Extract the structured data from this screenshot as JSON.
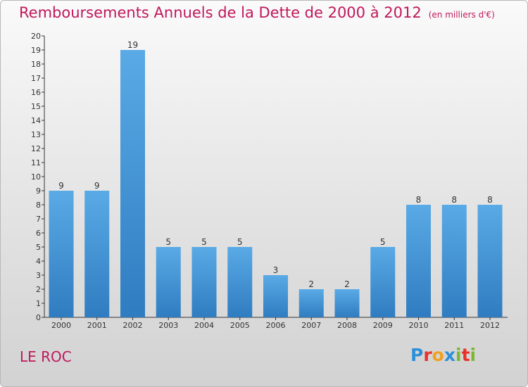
{
  "header": {
    "title": "Remboursements Annuels de la Dette de 2000 à 2012",
    "subtitle": "(en milliers d'€)"
  },
  "footer": {
    "commune": "LE ROC",
    "logo_text": "Proxiti",
    "logo_letters": [
      {
        "ch": "P",
        "color": "#2e8fd8"
      },
      {
        "ch": "r",
        "color": "#e8312a"
      },
      {
        "ch": "o",
        "color": "#f0a020"
      },
      {
        "ch": "x",
        "color": "#2e8fd8"
      },
      {
        "ch": "i",
        "color": "#7cb82f"
      },
      {
        "ch": "t",
        "color": "#e8312a"
      },
      {
        "ch": "i",
        "color": "#7cb82f"
      }
    ]
  },
  "colors": {
    "bar_top": "#5aaae6",
    "bar_bottom": "#2f7cc0",
    "title": "#c0185b",
    "axis": "#333333"
  },
  "chart_data": {
    "type": "bar",
    "title": "Remboursements Annuels de la Dette de 2000 à 2012",
    "subtitle": "(en milliers d'€)",
    "categories": [
      "2000",
      "2001",
      "2002",
      "2003",
      "2004",
      "2005",
      "2006",
      "2007",
      "2008",
      "2009",
      "2010",
      "2011",
      "2012"
    ],
    "values": [
      9,
      9,
      19,
      5,
      5,
      5,
      3,
      2,
      2,
      5,
      8,
      8,
      8
    ],
    "ylim": [
      0,
      20
    ],
    "yticks": [
      0,
      1,
      2,
      3,
      4,
      5,
      6,
      7,
      8,
      9,
      10,
      11,
      12,
      13,
      14,
      15,
      16,
      17,
      18,
      19,
      20
    ],
    "grid": false,
    "legend": "none"
  }
}
